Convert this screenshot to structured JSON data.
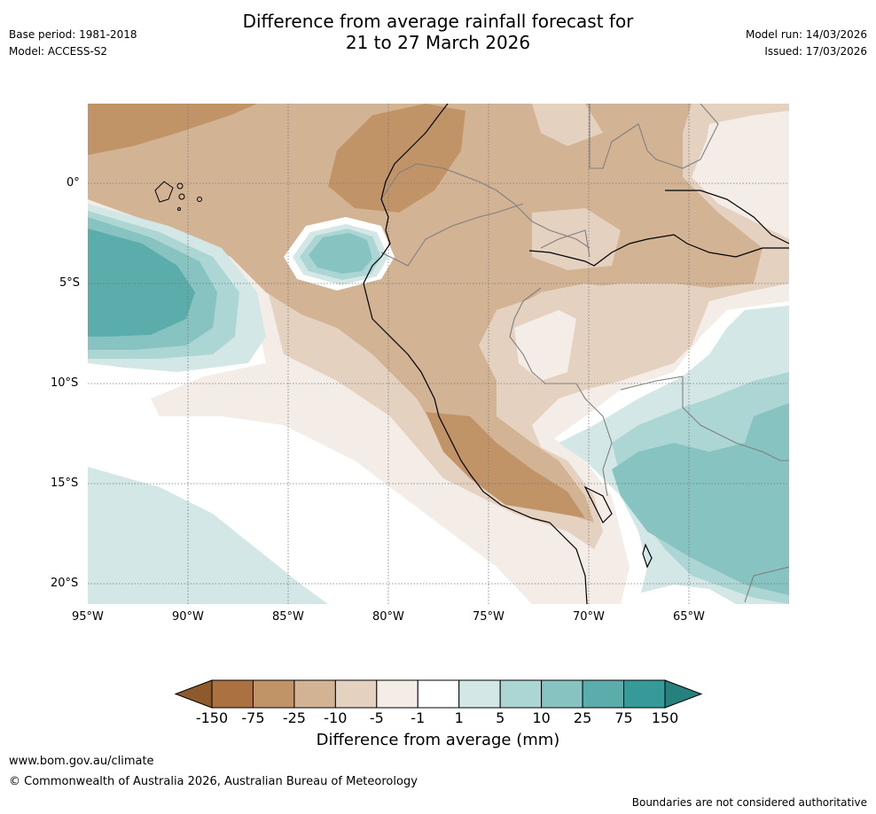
{
  "title": {
    "line1": "Difference from average rainfall forecast for",
    "line2": "21 to 27 March 2026"
  },
  "meta_left": {
    "base_period": "Base period: 1981-2018",
    "model": "Model: ACCESS-S2"
  },
  "meta_right": {
    "model_run": "Model run: 14/03/2026",
    "issued": "Issued: 17/03/2026"
  },
  "map": {
    "lat_ticks": [
      "0°",
      "5°S",
      "10°S",
      "15°S",
      "20°S"
    ],
    "lon_ticks": [
      "95°W",
      "90°W",
      "85°W",
      "80°W",
      "75°W",
      "70°W",
      "65°W"
    ]
  },
  "colorbar": {
    "labels": [
      "-150",
      "-75",
      "-25",
      "-10",
      "-5",
      "-1",
      "1",
      "5",
      "10",
      "25",
      "75",
      "150"
    ],
    "colors": [
      "#8c5a2c",
      "#ab7140",
      "#c19468",
      "#d2b393",
      "#e5d1c0",
      "#f4ece7",
      "#ffffff",
      "#d3e7e6",
      "#acd6d4",
      "#86c3c1",
      "#5aadab",
      "#359a98",
      "#26807e"
    ],
    "title": "Difference from average (mm)"
  },
  "footer": {
    "website": "www.bom.gov.au/climate",
    "copyright": "© Commonwealth of Australia 2026, Australian Bureau of Meteorology",
    "disclaimer": "Boundaries are not considered authoritative"
  }
}
